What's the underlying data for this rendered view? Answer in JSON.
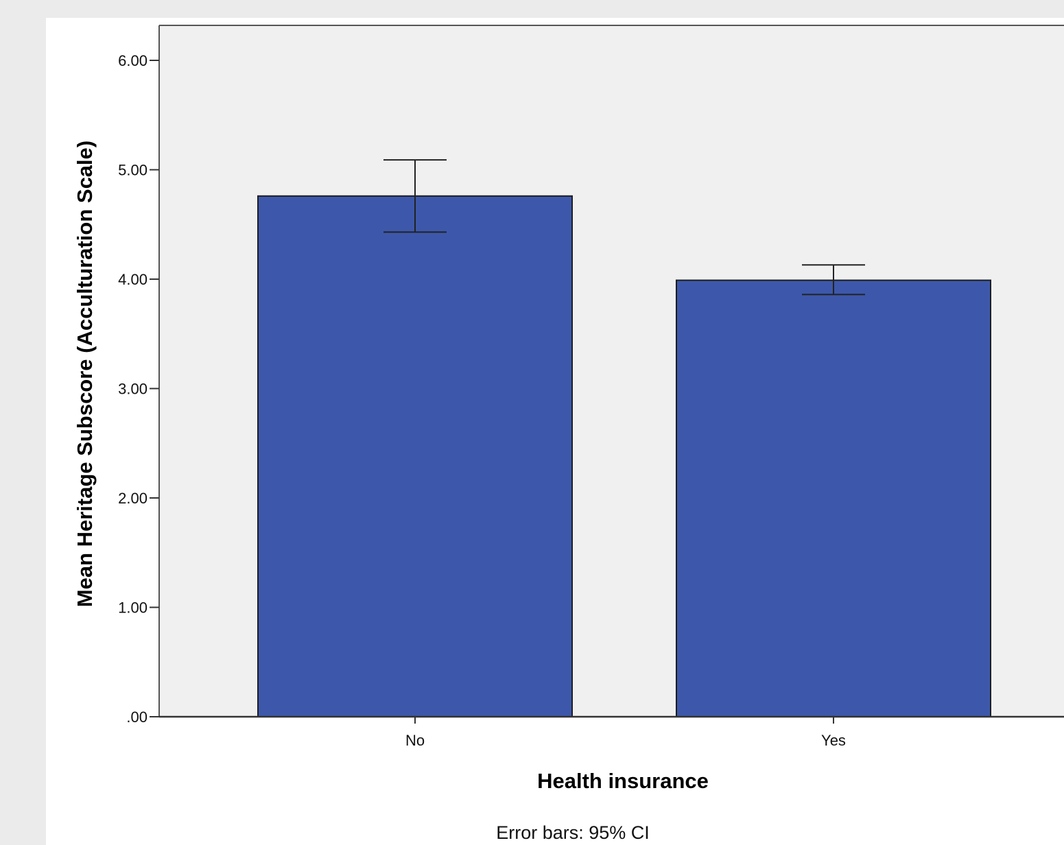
{
  "chart_data": {
    "type": "bar",
    "title": "",
    "xlabel": "Health insurance",
    "ylabel": "Mean Heritage Subscore (Acculturation Scale)",
    "categories": [
      "No",
      "Yes"
    ],
    "values": [
      4.76,
      3.99
    ],
    "error_bars": {
      "type": "95% CI",
      "lower": [
        4.43,
        3.86
      ],
      "upper": [
        5.09,
        4.13
      ]
    },
    "ylim": [
      0,
      6.3
    ],
    "yticks": [
      0,
      1,
      2,
      3,
      4,
      5,
      6
    ],
    "ytick_labels": [
      ".00",
      "1.00",
      "2.00",
      "3.00",
      "4.00",
      "5.00",
      "6.00"
    ],
    "grid": false,
    "legend": "none",
    "footnote": "Error bars: 95% CI",
    "colors": {
      "bar_fill": "#3d58ab",
      "bar_stroke": "#1e1e1e",
      "plot_background": "#f0f0f0",
      "canvas_background": "#ffffff",
      "page_background": "#ebebeb"
    }
  }
}
